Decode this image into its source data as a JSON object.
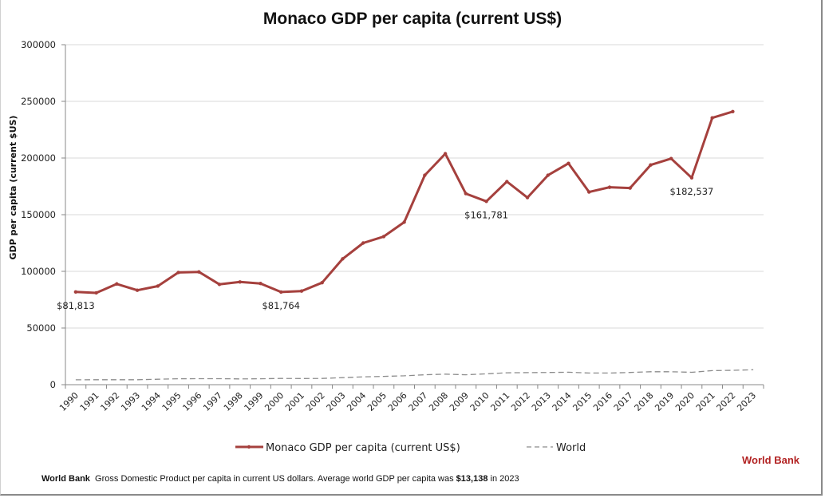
{
  "chart_data": {
    "type": "line",
    "title": "Monaco GDP per capita (current US$)",
    "xlabel": "",
    "ylabel": "GDP per capita (current $US)",
    "ylim": [
      0,
      300000
    ],
    "yticks": [
      0,
      50000,
      100000,
      150000,
      200000,
      250000,
      300000
    ],
    "grid": true,
    "categories": [
      "1990",
      "1991",
      "1992",
      "1993",
      "1994",
      "1995",
      "1996",
      "1997",
      "1998",
      "1999",
      "2000",
      "2001",
      "2002",
      "2003",
      "2004",
      "2005",
      "2006",
      "2007",
      "2008",
      "2009",
      "2010",
      "2011",
      "2012",
      "2013",
      "2014",
      "2015",
      "2016",
      "2017",
      "2018",
      "2019",
      "2020",
      "2021",
      "2022",
      "2023"
    ],
    "series": [
      {
        "name": "Monaco GDP per capita (current US$)",
        "color": "#a5403d",
        "style": "solid",
        "values": [
          81813,
          81000,
          88900,
          83300,
          87000,
          99000,
          99500,
          88500,
          90600,
          89300,
          81764,
          82600,
          90000,
          111000,
          125000,
          130700,
          143400,
          184800,
          203800,
          168600,
          161781,
          179200,
          165100,
          184800,
          195300,
          170000,
          174200,
          173500,
          193900,
          199500,
          182537,
          235400,
          241000,
          null
        ]
      },
      {
        "name": "World",
        "color": "#8c8c8c",
        "style": "dashed",
        "values": [
          4300,
          4400,
          4400,
          4400,
          4800,
          5200,
          5300,
          5300,
          5100,
          5200,
          5500,
          5400,
          5500,
          6200,
          6900,
          7300,
          7800,
          8700,
          9300,
          8700,
          9600,
          10500,
          10600,
          10800,
          11000,
          10300,
          10300,
          10800,
          11400,
          11400,
          10900,
          12400,
          12700,
          13138
        ]
      }
    ],
    "annotations": [
      {
        "category": "1990",
        "series": 0,
        "text": "$81,813"
      },
      {
        "category": "2000",
        "series": 0,
        "text": "$81,764"
      },
      {
        "category": "2010",
        "series": 0,
        "text": "$161,781"
      },
      {
        "category": "2020",
        "series": 0,
        "text": "$182,537"
      }
    ],
    "legend": {
      "placement": "bottom"
    }
  },
  "brand": "World Bank",
  "footnote": {
    "source": "World Bank",
    "text": "Gross Domestic Product per capita in current US dollars.  Average world GDP per capita was ",
    "highlight": "$13,138",
    "suffix": " in 2023"
  }
}
